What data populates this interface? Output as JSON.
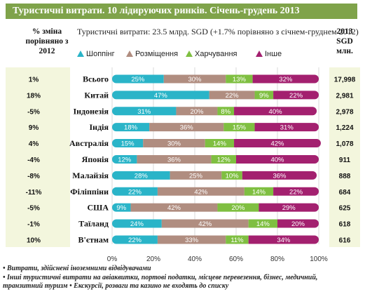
{
  "title": "Туристичні витрати. 10 лідируючих ринків. Січень-грудень 2013",
  "subtitle": "Туристичні витрати: 23.5 млрд. SGD (+1.7% порівняно з січнем-груднем 2012)",
  "left_header": "% зміна порівняно з 2012",
  "right_header": "2013 SGD млн.",
  "footnotes": [
    "Витрати, здійснені іноземними відвідувачами",
    "Інші туристичні витрати на авіаквитки, портові податки, місцеве перевезення, бізнес, медичний, транзитний туризм • Екскурсії, розваги та казино не входять до списку"
  ],
  "chart_data": {
    "type": "bar",
    "orientation": "horizontal",
    "stacked": true,
    "percent_stacked": true,
    "categories": [
      "Всього",
      "Китай",
      "Індонезія",
      "Індія",
      "Австралія",
      "Японія",
      "Малайзія",
      "Філіппіни",
      "США",
      "Таїланд",
      "В'єтнам"
    ],
    "series": [
      {
        "name": "Шоппінг",
        "color": "#2ab4c8",
        "values": [
          25,
          47,
          31,
          18,
          15,
          12,
          28,
          22,
          9,
          24,
          22
        ]
      },
      {
        "name": "Розміщення",
        "color": "#b08d80",
        "values": [
          30,
          22,
          20,
          36,
          30,
          36,
          25,
          42,
          42,
          42,
          33
        ]
      },
      {
        "name": "Харчування",
        "color": "#7fbf41",
        "values": [
          13,
          9,
          8,
          15,
          14,
          12,
          10,
          14,
          20,
          14,
          11
        ]
      },
      {
        "name": "Інше",
        "color": "#a3206f",
        "values": [
          32,
          22,
          40,
          31,
          42,
          40,
          36,
          22,
          29,
          20,
          34
        ]
      }
    ],
    "pct_change": [
      "1%",
      "18%",
      "-5%",
      "9%",
      "4%",
      "-4%",
      "-8%",
      "-11%",
      "-5%",
      "-1%",
      "10%"
    ],
    "spend_sgd_mln": [
      "17,998",
      "2,981",
      "2,978",
      "1,224",
      "1,078",
      "911",
      "888",
      "684",
      "625",
      "618",
      "616"
    ],
    "x_ticks": [
      "0%",
      "20%",
      "40%",
      "60%",
      "80%",
      "100%"
    ],
    "xlim": [
      0,
      100
    ],
    "grid": true,
    "legend_position": "top"
  }
}
